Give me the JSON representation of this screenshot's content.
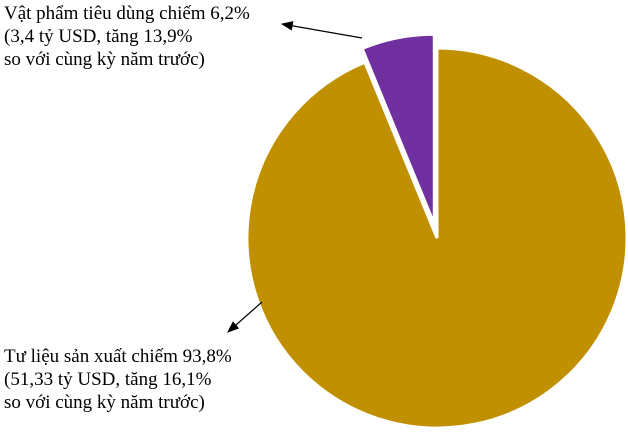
{
  "chart_data": {
    "type": "pie",
    "categories": [
      "Vật phẩm tiêu dùng",
      "Tư liệu sản xuất"
    ],
    "values": [
      6.2,
      93.8
    ],
    "colors": [
      "#7030A0",
      "#C09000"
    ],
    "exploded": [
      true,
      false
    ],
    "labels": [
      {
        "line1": "Vật phẩm tiêu dùng chiếm 6,2%",
        "line2": "(3,4 tỷ USD, tăng 13,9%",
        "line3": "so với cùng kỳ năm trước)"
      },
      {
        "line1": "Tư liệu sản xuất chiếm 93,8%",
        "line2": "(51,33 tỷ USD, tăng 16,1%",
        "line3": "so với cùng kỳ năm trước)"
      }
    ]
  }
}
